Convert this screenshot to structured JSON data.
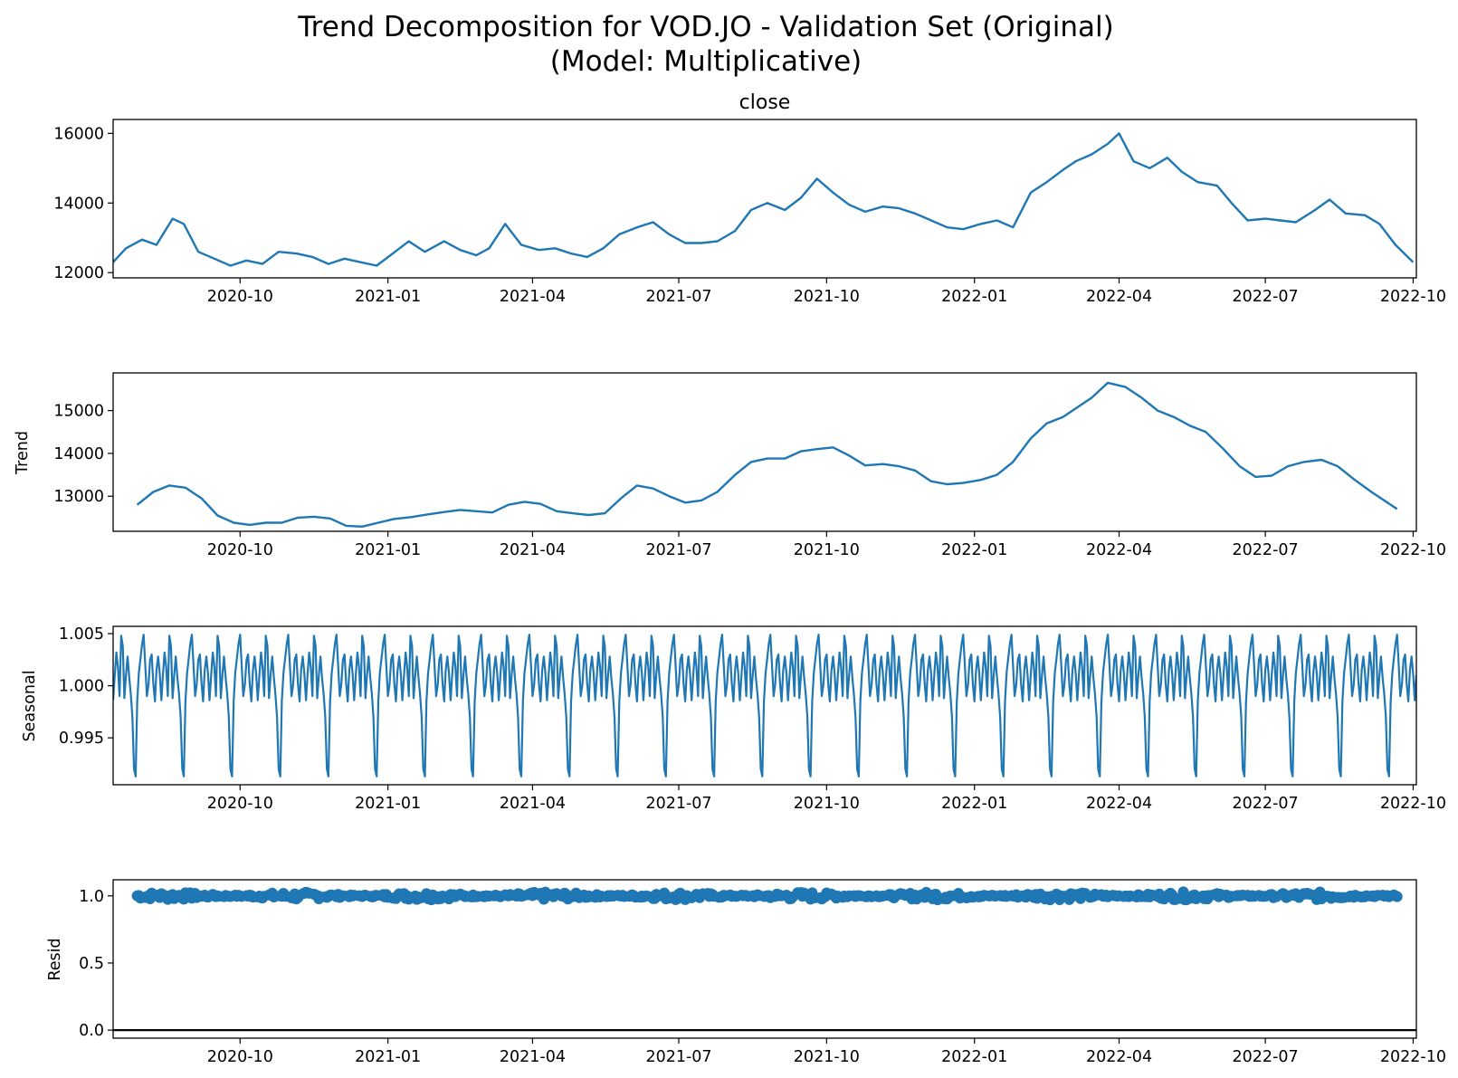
{
  "chart_data": [
    {
      "type": "line",
      "title_line1": "Trend Decomposition for VOD.JO - Validation Set (Original)",
      "title_line2": "(Model: Multiplicative)",
      "subplot_title": "close",
      "ylabel": "",
      "xlim": [
        "2020-07-14",
        "2022-10-03"
      ],
      "ylim": [
        11850,
        16400
      ],
      "x_ticks": [
        "2020-10",
        "2021-01",
        "2021-04",
        "2021-07",
        "2021-10",
        "2022-01",
        "2022-04",
        "2022-07",
        "2022-10"
      ],
      "y_ticks": [
        "12000",
        "14000",
        "16000"
      ],
      "series": [
        {
          "color": "#1f77b4",
          "x": [
            "2020-07-14",
            "2020-07-22",
            "2020-08-01",
            "2020-08-10",
            "2020-08-20",
            "2020-08-27",
            "2020-09-05",
            "2020-09-15",
            "2020-09-25",
            "2020-10-05",
            "2020-10-15",
            "2020-10-25",
            "2020-11-05",
            "2020-11-15",
            "2020-11-25",
            "2020-12-05",
            "2020-12-15",
            "2020-12-25",
            "2021-01-04",
            "2021-01-14",
            "2021-01-24",
            "2021-02-05",
            "2021-02-15",
            "2021-02-25",
            "2021-03-05",
            "2021-03-15",
            "2021-03-25",
            "2021-04-05",
            "2021-04-15",
            "2021-04-25",
            "2021-05-05",
            "2021-05-15",
            "2021-05-25",
            "2021-06-05",
            "2021-06-15",
            "2021-06-25",
            "2021-07-05",
            "2021-07-15",
            "2021-07-25",
            "2021-08-05",
            "2021-08-15",
            "2021-08-25",
            "2021-09-05",
            "2021-09-15",
            "2021-09-25",
            "2021-10-05",
            "2021-10-15",
            "2021-10-25",
            "2021-11-05",
            "2021-11-15",
            "2021-11-25",
            "2021-12-05",
            "2021-12-15",
            "2021-12-25",
            "2022-01-05",
            "2022-01-15",
            "2022-01-25",
            "2022-02-05",
            "2022-02-15",
            "2022-02-25",
            "2022-03-05",
            "2022-03-15",
            "2022-03-25",
            "2022-04-01",
            "2022-04-10",
            "2022-04-20",
            "2022-05-01",
            "2022-05-10",
            "2022-05-20",
            "2022-06-01",
            "2022-06-10",
            "2022-06-20",
            "2022-07-01",
            "2022-07-10",
            "2022-07-20",
            "2022-08-01",
            "2022-08-10",
            "2022-08-20",
            "2022-09-01",
            "2022-09-10",
            "2022-09-20",
            "2022-10-01"
          ],
          "values": [
            12300,
            12700,
            12950,
            12800,
            13550,
            13400,
            12600,
            12400,
            12200,
            12350,
            12250,
            12600,
            12550,
            12450,
            12250,
            12400,
            12300,
            12200,
            12550,
            12900,
            12600,
            12900,
            12650,
            12500,
            12700,
            13400,
            12800,
            12650,
            12700,
            12550,
            12450,
            12700,
            13100,
            13300,
            13450,
            13100,
            12850,
            12850,
            12900,
            13200,
            13800,
            14000,
            13800,
            14150,
            14700,
            14300,
            13950,
            13750,
            13900,
            13850,
            13700,
            13500,
            13300,
            13250,
            13400,
            13500,
            13300,
            14300,
            14600,
            14950,
            15200,
            15400,
            15700,
            16000,
            15200,
            15000,
            15300,
            14900,
            14600,
            14500,
            14000,
            13500,
            13550,
            13500,
            13450,
            13800,
            14100,
            13700,
            13650,
            13400,
            12800,
            12300
          ]
        }
      ]
    },
    {
      "type": "line",
      "ylabel": "Trend",
      "xlim": [
        "2020-07-14",
        "2022-10-03"
      ],
      "ylim": [
        12180,
        15880
      ],
      "x_ticks": [
        "2020-10",
        "2021-01",
        "2021-04",
        "2021-07",
        "2021-10",
        "2022-01",
        "2022-04",
        "2022-07",
        "2022-10"
      ],
      "y_ticks": [
        "13000",
        "14000",
        "15000"
      ],
      "series": [
        {
          "color": "#1f77b4",
          "x": [
            "2020-07-29",
            "2020-08-08",
            "2020-08-18",
            "2020-08-28",
            "2020-09-07",
            "2020-09-17",
            "2020-09-27",
            "2020-10-07",
            "2020-10-17",
            "2020-10-27",
            "2020-11-06",
            "2020-11-16",
            "2020-11-26",
            "2020-12-06",
            "2020-12-16",
            "2020-12-26",
            "2021-01-05",
            "2021-01-15",
            "2021-01-25",
            "2021-02-05",
            "2021-02-15",
            "2021-02-25",
            "2021-03-07",
            "2021-03-17",
            "2021-03-27",
            "2021-04-06",
            "2021-04-16",
            "2021-04-26",
            "2021-05-06",
            "2021-05-16",
            "2021-05-26",
            "2021-06-05",
            "2021-06-15",
            "2021-06-25",
            "2021-07-05",
            "2021-07-15",
            "2021-07-25",
            "2021-08-05",
            "2021-08-15",
            "2021-08-25",
            "2021-09-05",
            "2021-09-15",
            "2021-09-25",
            "2021-10-05",
            "2021-10-15",
            "2021-10-25",
            "2021-11-05",
            "2021-11-15",
            "2021-11-25",
            "2021-12-05",
            "2021-12-15",
            "2021-12-25",
            "2022-01-05",
            "2022-01-15",
            "2022-01-25",
            "2022-02-05",
            "2022-02-15",
            "2022-02-25",
            "2022-03-05",
            "2022-03-15",
            "2022-03-25",
            "2022-04-05",
            "2022-04-15",
            "2022-04-25",
            "2022-05-05",
            "2022-05-15",
            "2022-05-25",
            "2022-06-05",
            "2022-06-15",
            "2022-06-25",
            "2022-07-05",
            "2022-07-15",
            "2022-07-25",
            "2022-08-05",
            "2022-08-15",
            "2022-08-25",
            "2022-09-05",
            "2022-09-15",
            "2022-09-21"
          ],
          "values": [
            12800,
            13100,
            13250,
            13200,
            12950,
            12550,
            12380,
            12330,
            12380,
            12380,
            12500,
            12520,
            12480,
            12310,
            12290,
            12380,
            12470,
            12510,
            12570,
            12630,
            12680,
            12650,
            12620,
            12800,
            12870,
            12820,
            12650,
            12600,
            12560,
            12600,
            12950,
            13250,
            13180,
            13000,
            12850,
            12900,
            13100,
            13500,
            13800,
            13880,
            13880,
            14050,
            14100,
            14140,
            13950,
            13720,
            13750,
            13700,
            13600,
            13350,
            13280,
            13310,
            13380,
            13500,
            13800,
            14350,
            14700,
            14850,
            15050,
            15300,
            15650,
            15550,
            15300,
            15000,
            14850,
            14650,
            14500,
            14100,
            13700,
            13450,
            13480,
            13700,
            13800,
            13850,
            13700,
            13400,
            13100,
            12850,
            12700
          ]
        }
      ]
    },
    {
      "type": "line",
      "ylabel": "Seasonal",
      "xlim": [
        "2020-07-14",
        "2022-10-03"
      ],
      "ylim": [
        0.9905,
        1.0057
      ],
      "x_ticks": [
        "2020-10",
        "2021-01",
        "2021-04",
        "2021-07",
        "2021-10",
        "2022-01",
        "2022-04",
        "2022-07",
        "2022-10"
      ],
      "y_ticks": [
        "0.995",
        "1.000",
        "1.005"
      ],
      "period_days": 30,
      "series": [
        {
          "color": "#1f77b4",
          "cycle_values": [
            0.9986,
            1.001,
            1.0032,
            1.0018,
            0.999,
            1.0048,
            1.0038,
            0.9988,
            1.001,
            1.0028,
            1.0008,
            0.9992,
            0.997,
            0.992,
            0.9913,
            0.9985,
            1.0012,
            1.0026,
            1.004,
            1.0049,
            1.002,
            0.999,
            1.0001,
            1.0025,
            1.003,
            1.0002,
            0.9985,
            1.0015,
            1.0028,
            1.0012
          ]
        }
      ]
    },
    {
      "type": "scatter",
      "ylabel": "Resid",
      "xlim": [
        "2020-07-14",
        "2022-10-03"
      ],
      "ylim": [
        -0.06,
        1.12
      ],
      "x_ticks": [
        "2020-10",
        "2021-01",
        "2021-04",
        "2021-07",
        "2021-10",
        "2022-01",
        "2022-04",
        "2022-07",
        "2022-10"
      ],
      "y_ticks": [
        "0.0",
        "0.5",
        "1.0"
      ],
      "baseline": 0,
      "x_range": [
        "2020-07-29",
        "2022-09-21"
      ],
      "value_center": 1.0,
      "value_spread": 0.03,
      "series": [
        {
          "color": "#1f77b4"
        }
      ]
    }
  ]
}
